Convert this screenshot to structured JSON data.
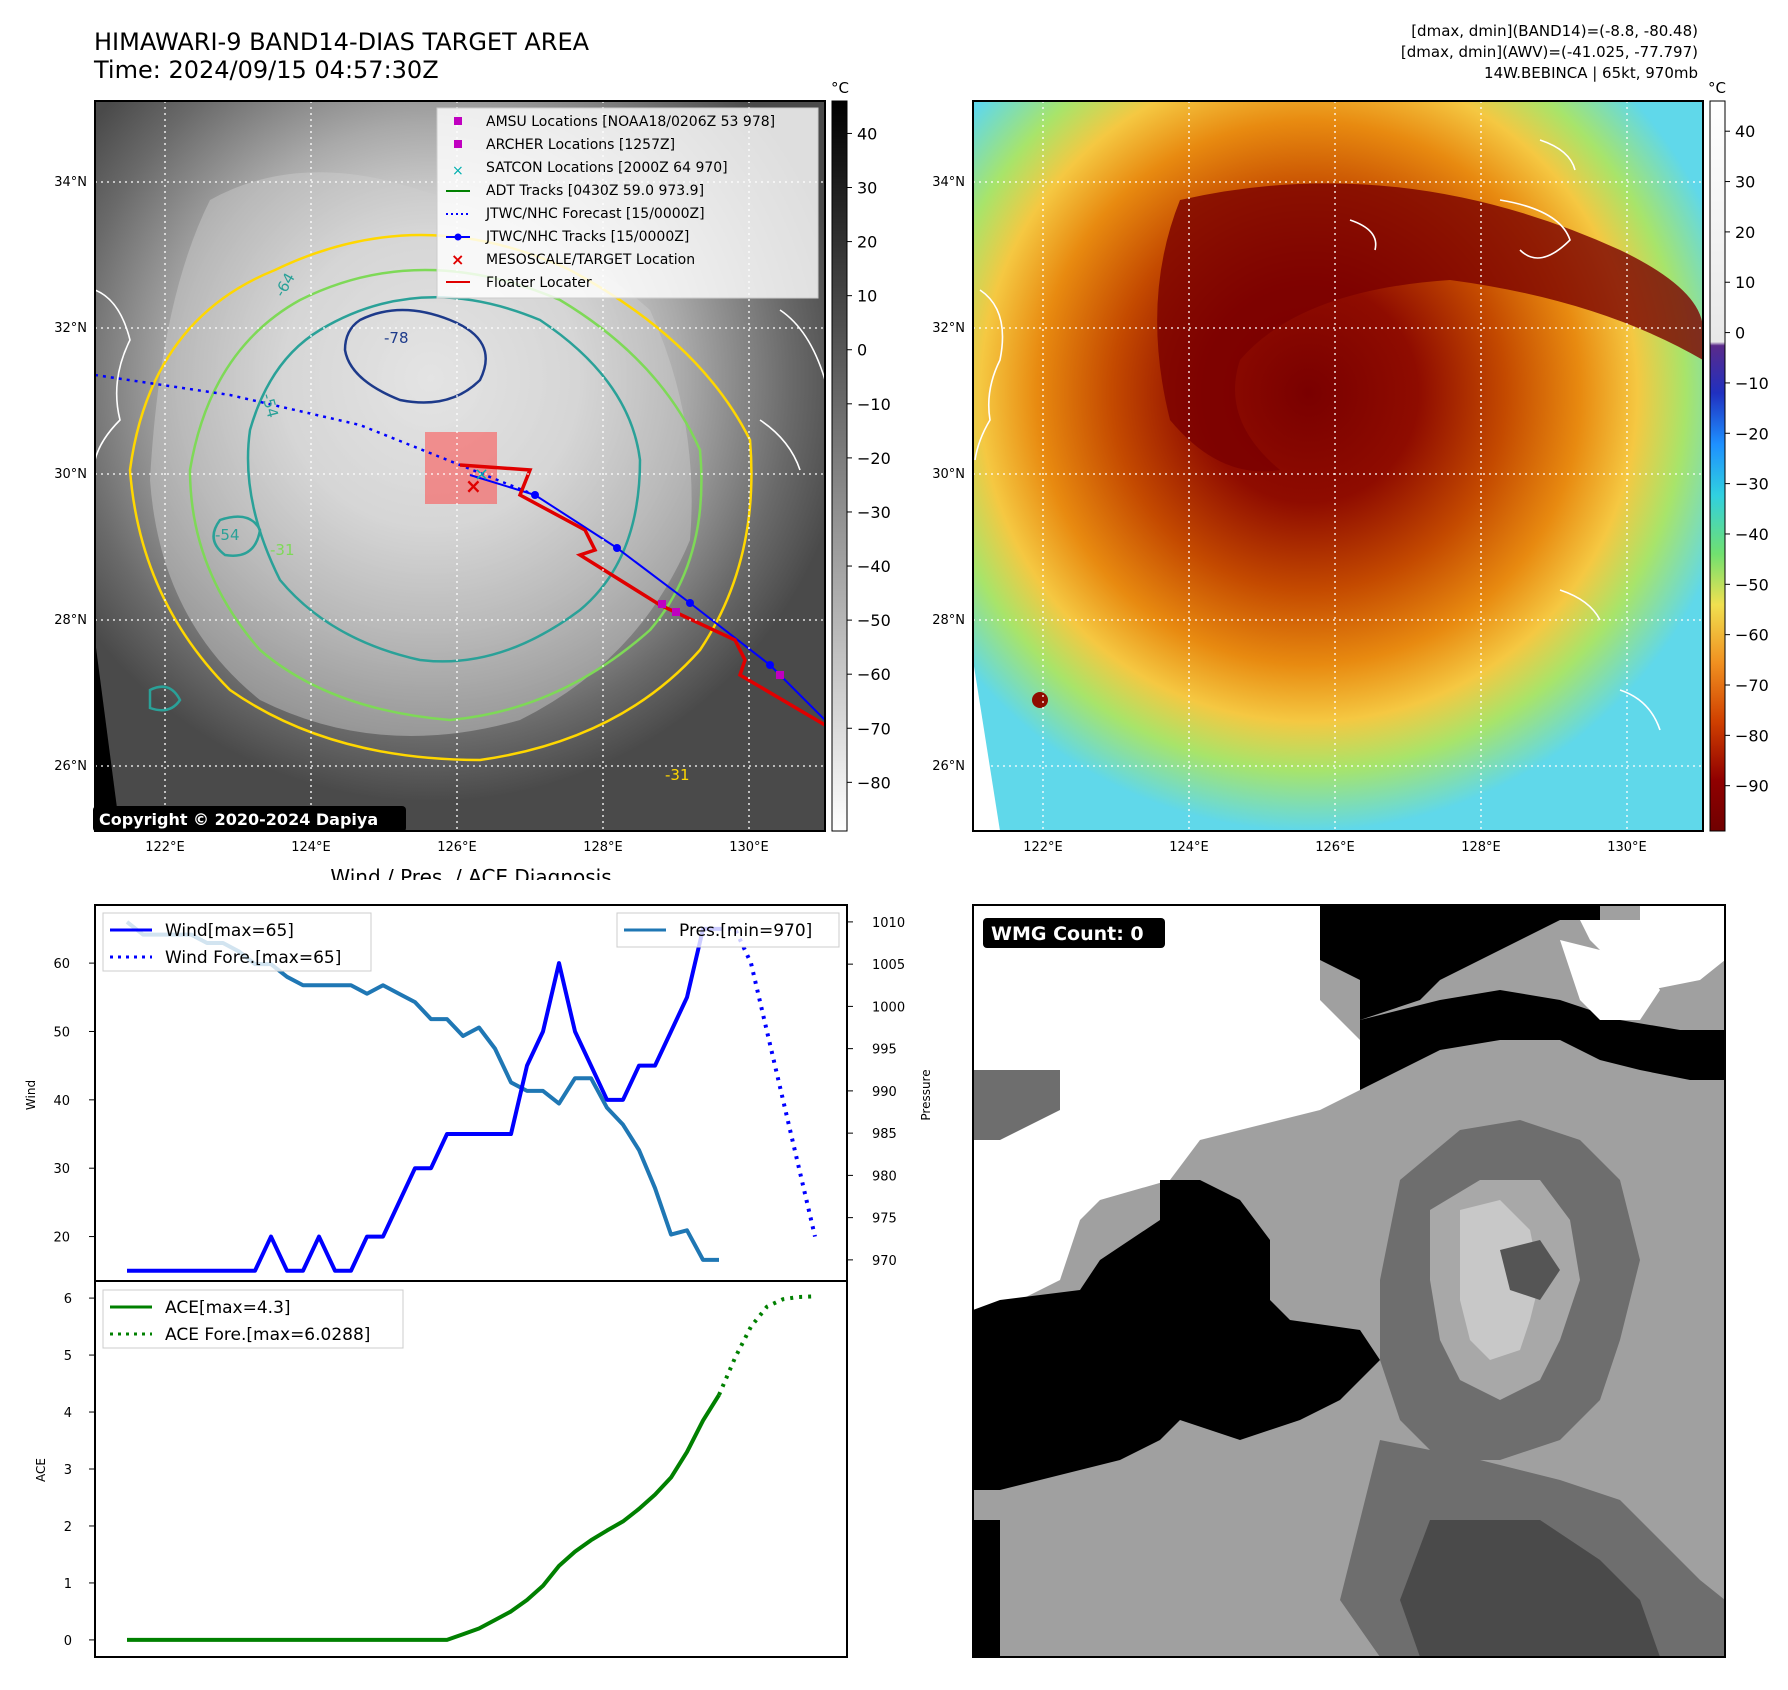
{
  "header": {
    "title": "HIMAWARI-9 BAND14-DIAS TARGET AREA",
    "time": "Time: 2024/09/15 04:57:30Z",
    "stats_band14": "[dmax, dmin](BAND14)=(-8.8, -80.48)",
    "stats_awv": "[dmax, dmin](AWV)=(-41.025, -77.797)",
    "storm": "14W.BEBINCA | 65kt, 970mb"
  },
  "map_panels": {
    "lat_ticks": [
      "34°N",
      "32°N",
      "30°N",
      "28°N",
      "26°N"
    ],
    "lon_ticks": [
      "122°E",
      "124°E",
      "126°E",
      "128°E",
      "130°E"
    ],
    "colorbar_unit": "°C",
    "left_colorbar_ticks": [
      "40",
      "30",
      "20",
      "10",
      "0",
      "−10",
      "−20",
      "−30",
      "−40",
      "−50",
      "−60",
      "−70",
      "−80"
    ],
    "right_colorbar_ticks": [
      "40",
      "30",
      "20",
      "10",
      "0",
      "−10",
      "−20",
      "−30",
      "−40",
      "−50",
      "−60",
      "−70",
      "−80",
      "−90"
    ],
    "contour_labels": [
      "-78",
      "-64",
      "-54",
      "-54",
      "-31",
      "-31"
    ],
    "copyright": "Copyright © 2020-2024 Dapiya",
    "legend": [
      {
        "label": "AMSU Locations [NOAA18/0206Z 53 978]",
        "color": "#c000c0",
        "marker": "square"
      },
      {
        "label": "ARCHER Locations [1257Z]",
        "color": "#c000c0",
        "marker": "square"
      },
      {
        "label": "SATCON Locations [2000Z 64 970]",
        "color": "#00b0b0",
        "marker": "x"
      },
      {
        "label": "ADT Tracks [0430Z 59.0 973.9]",
        "color": "#008000",
        "marker": "line"
      },
      {
        "label": "JTWC/NHC Forecast [15/0000Z]",
        "color": "#0000ff",
        "marker": "dotted"
      },
      {
        "label": "JTWC/NHC Tracks [15/0000Z]",
        "color": "#0000ff",
        "marker": "line-dot"
      },
      {
        "label": "MESOSCALE/TARGET Location",
        "color": "#e00000",
        "marker": "x"
      },
      {
        "label": "Floater Locater",
        "color": "#e00000",
        "marker": "line"
      }
    ],
    "wmg_label": "WMG Count: 0"
  },
  "chart_data": [
    {
      "type": "line",
      "title": "Wind / Pres. / ACE Diagnosis",
      "ylabel": "Wind",
      "y2label": "Pressure",
      "ylim": [
        13.5,
        68.5
      ],
      "y2lim": [
        967.5,
        1012
      ],
      "yticks": [
        20,
        30,
        40,
        50,
        60
      ],
      "y2ticks": [
        970,
        975,
        980,
        985,
        990,
        995,
        1000,
        1005,
        1010
      ],
      "x": [
        0,
        1,
        2,
        3,
        4,
        5,
        6,
        7,
        8,
        9,
        10,
        11,
        12,
        13,
        14,
        15,
        16,
        17,
        18,
        19,
        20,
        21,
        22,
        23,
        24,
        25,
        26,
        27,
        28,
        29,
        30,
        31,
        32,
        33,
        34,
        35,
        36,
        37,
        38,
        39,
        40,
        41,
        42,
        43
      ],
      "series": [
        {
          "name": "Wind[max=65]",
          "color": "#0000ff",
          "style": "solid",
          "x": [
            0,
            1,
            2,
            3,
            4,
            5,
            6,
            7,
            8,
            9,
            10,
            11,
            12,
            13,
            14,
            15,
            16,
            17,
            18,
            19,
            20,
            21,
            22,
            23,
            24,
            25,
            26,
            27,
            28,
            29,
            30,
            31,
            32,
            33,
            34,
            35,
            36,
            37
          ],
          "values": [
            15,
            15,
            15,
            15,
            15,
            15,
            15,
            15,
            15,
            20,
            15,
            15,
            20,
            15,
            15,
            20,
            20,
            25,
            30,
            30,
            35,
            35,
            35,
            35,
            35,
            45,
            50,
            60,
            50,
            45,
            40,
            40,
            45,
            45,
            50,
            55,
            65,
            65
          ]
        },
        {
          "name": "Wind Fore.[max=65]",
          "color": "#0000ff",
          "style": "dotted",
          "x": [
            37,
            38,
            39,
            40,
            41,
            42,
            43
          ],
          "values": [
            65,
            65,
            60,
            50,
            40,
            30,
            20
          ]
        },
        {
          "name": "Pres.[min=970]",
          "color": "#1f77b4",
          "style": "solid",
          "axis": "right",
          "x": [
            0,
            1,
            2,
            3,
            4,
            5,
            6,
            7,
            8,
            9,
            10,
            11,
            12,
            13,
            14,
            15,
            16,
            17,
            18,
            19,
            20,
            21,
            22,
            23,
            24,
            25,
            26,
            27,
            28,
            29,
            30,
            31,
            32,
            33,
            34,
            35,
            36,
            37
          ],
          "values": [
            1010,
            1008.5,
            1008.5,
            1008.5,
            1008.5,
            1007.5,
            1007.5,
            1006.5,
            1005,
            1005,
            1003.5,
            1002.5,
            1002.5,
            1002.5,
            1002.5,
            1001.5,
            1002.5,
            1001.5,
            1000.5,
            998.5,
            998.5,
            996.5,
            997.5,
            995,
            991,
            990,
            990,
            988.5,
            991.5,
            991.5,
            988,
            986,
            983,
            978.5,
            973,
            973.5,
            970,
            970
          ]
        }
      ]
    },
    {
      "type": "line",
      "ylabel": "ACE",
      "ylim": [
        -0.3,
        6.3
      ],
      "yticks": [
        0,
        1,
        2,
        3,
        4,
        5,
        6
      ],
      "series": [
        {
          "name": "ACE[max=4.3]",
          "color": "#008000",
          "style": "solid",
          "x": [
            0,
            1,
            2,
            3,
            4,
            5,
            6,
            7,
            8,
            9,
            10,
            11,
            12,
            13,
            14,
            15,
            16,
            17,
            18,
            19,
            20,
            21,
            22,
            23,
            24,
            25,
            26,
            27,
            28,
            29,
            30,
            31,
            32,
            33,
            34,
            35,
            36,
            37
          ],
          "values": [
            0,
            0,
            0,
            0,
            0,
            0,
            0,
            0,
            0,
            0,
            0,
            0,
            0,
            0,
            0,
            0,
            0,
            0,
            0,
            0,
            0,
            0.1,
            0.2,
            0.35,
            0.5,
            0.7,
            0.95,
            1.3,
            1.55,
            1.75,
            1.92,
            2.08,
            2.3,
            2.55,
            2.85,
            3.3,
            3.85,
            4.3
          ]
        },
        {
          "name": "ACE Fore.[max=6.0288]",
          "color": "#008000",
          "style": "dotted",
          "x": [
            37,
            38,
            39,
            40,
            41,
            42,
            43
          ],
          "values": [
            4.3,
            4.95,
            5.5,
            5.85,
            5.98,
            6.02,
            6.03
          ]
        }
      ]
    }
  ]
}
